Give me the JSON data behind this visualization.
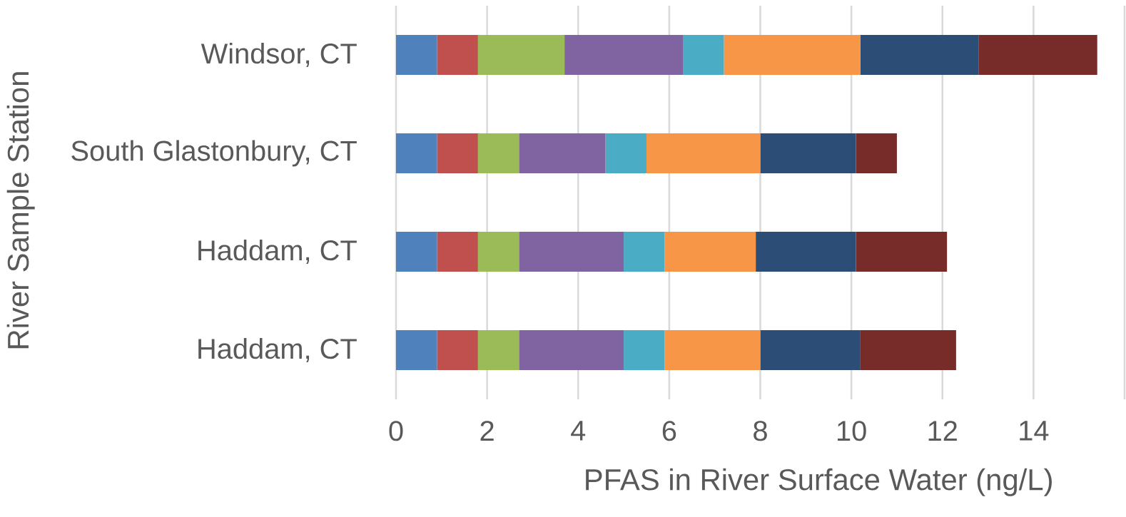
{
  "chart_data": {
    "type": "bar",
    "orientation": "horizontal",
    "stacked": true,
    "grid": "x",
    "xlabel": "PFAS in River Surface Water (ng/L)",
    "ylabel": "River Sample Station",
    "categories": [
      "Windsor, CT",
      "South Glastonbury, CT",
      "Haddam, CT",
      "Haddam, CT"
    ],
    "xlim": [
      0,
      16
    ],
    "xticks": [
      0,
      2,
      4,
      6,
      8,
      10,
      12,
      14,
      {
        "value": 16,
        "label": null
      }
    ],
    "series": [
      {
        "color": "#4f81bd",
        "values": [
          0.9,
          0.9,
          0.9,
          0.9
        ]
      },
      {
        "color": "#c0504d",
        "values": [
          0.9,
          0.9,
          0.9,
          0.9
        ]
      },
      {
        "color": "#9bbb59",
        "values": [
          1.9,
          0.9,
          0.9,
          0.9
        ]
      },
      {
        "color": "#8064a2",
        "values": [
          2.6,
          1.9,
          2.3,
          2.3
        ]
      },
      {
        "color": "#4bacc6",
        "values": [
          0.9,
          0.9,
          0.9,
          0.9
        ]
      },
      {
        "color": "#f79646",
        "values": [
          3.0,
          2.5,
          2.0,
          2.1
        ]
      },
      {
        "color": "#2c4d75",
        "values": [
          2.6,
          2.1,
          2.2,
          2.2
        ]
      },
      {
        "color": "#772c2a",
        "values": [
          2.6,
          0.9,
          2.0,
          2.1
        ]
      }
    ]
  }
}
